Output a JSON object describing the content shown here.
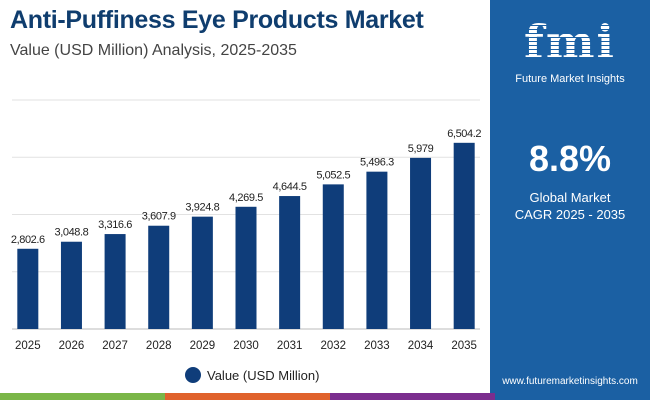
{
  "header": {
    "title": "Anti-Puffiness Eye Products Market",
    "subtitle": "Value (USD Million) Analysis, 2025-2035"
  },
  "panel": {
    "logo_mark": "fmi",
    "logo_text": "Future Market Insights",
    "cagr_value": "8.8%",
    "cagr_label_line1": "Global Market",
    "cagr_label_line2": "CAGR 2025 - 2035",
    "url": "www.futuremarketinsights.com",
    "background": "#1b60a3"
  },
  "colors": {
    "bar": "#0f3d7a",
    "title": "#0f3d6e",
    "strip": [
      "#7ab648",
      "#e0622c",
      "#7b2d8e",
      "#1b60a3"
    ]
  },
  "chart_data": {
    "type": "bar",
    "categories": [
      "2025",
      "2026",
      "2027",
      "2028",
      "2029",
      "2030",
      "2031",
      "2032",
      "2033",
      "2034",
      "2035"
    ],
    "series": [
      {
        "name": "Value (USD Million)",
        "values": [
          2802.6,
          3048.8,
          3316.6,
          3607.9,
          3924.8,
          4269.5,
          4644.5,
          5052.5,
          5496.3,
          5979,
          6504.2
        ]
      }
    ],
    "data_labels": [
      "2,802.6",
      "3,048.8",
      "3,316.6",
      "3,607.9",
      "3,924.8",
      "4,269.5",
      "4,644.5",
      "5,052.5",
      "5,496.3",
      "5,979",
      "6,504.2"
    ],
    "ylim": [
      0,
      8000
    ],
    "grid": true,
    "y_ticks_shown": false,
    "legend": "bottom-center"
  }
}
